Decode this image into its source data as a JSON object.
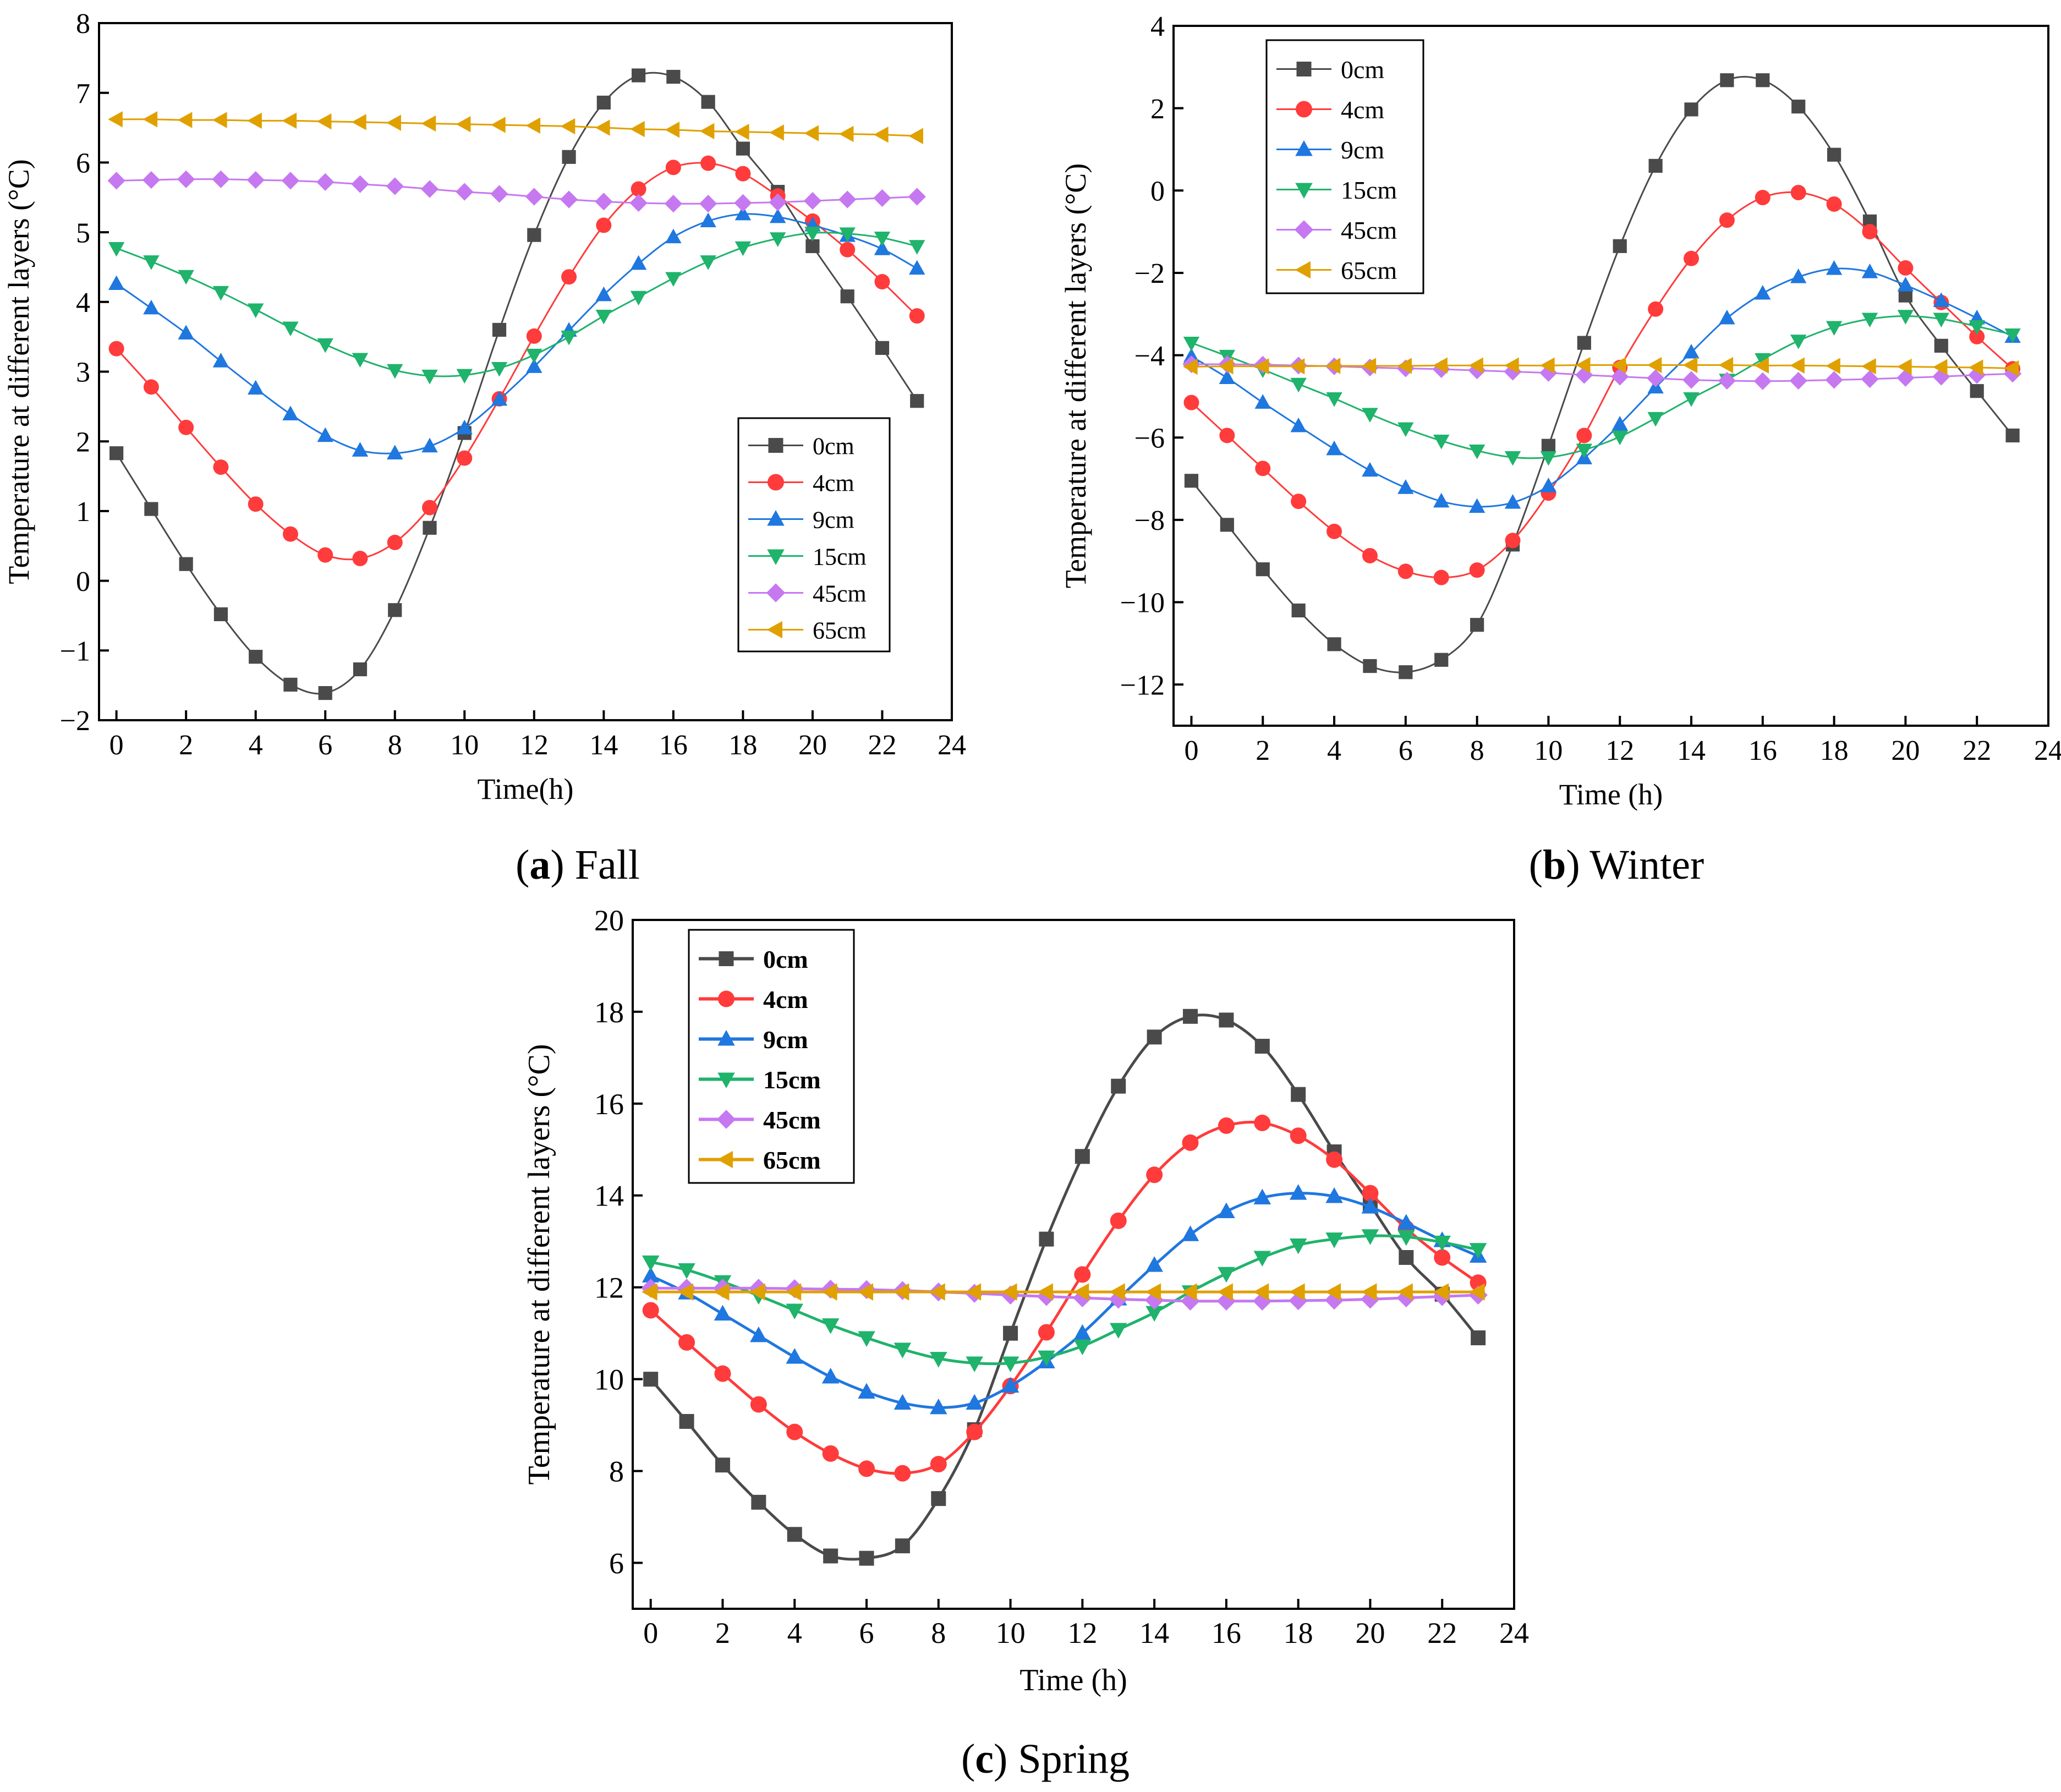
{
  "figure": {
    "captions": [
      {
        "letter": "a",
        "rest": " Fall"
      },
      {
        "letter": "b",
        "rest": " Winter"
      },
      {
        "letter": "c",
        "rest": " Spring"
      }
    ]
  },
  "chart_data": [
    {
      "type": "line",
      "title": "Fall",
      "xlabel": "Time(h)",
      "ylabel": "Temperature at different layers (°C)",
      "xlim": [
        -0.5,
        24
      ],
      "ylim": [
        -2,
        8
      ],
      "xticks": [
        0,
        2,
        4,
        6,
        8,
        10,
        12,
        14,
        16,
        18,
        20,
        22,
        24
      ],
      "yticks": [
        -2,
        -1,
        0,
        1,
        2,
        3,
        4,
        5,
        6,
        7,
        8
      ],
      "legend_position": "lower-right",
      "x": [
        0,
        1,
        2,
        3,
        4,
        5,
        6,
        7,
        8,
        9,
        10,
        11,
        12,
        13,
        14,
        15,
        16,
        17,
        18,
        19,
        20,
        21,
        22,
        23
      ],
      "series": [
        {
          "name": "0cm",
          "color": "#4a4a4a",
          "marker": "square",
          "values": [
            1.83,
            1.03,
            0.24,
            -0.48,
            -1.09,
            -1.49,
            -1.61,
            -1.27,
            -0.42,
            0.76,
            2.12,
            3.6,
            4.96,
            6.08,
            6.86,
            7.25,
            7.23,
            6.87,
            6.2,
            5.58,
            4.8,
            4.08,
            3.34,
            2.58
          ]
        },
        {
          "name": "4cm",
          "color": "#ff3b3b",
          "marker": "circle",
          "values": [
            3.33,
            2.78,
            2.2,
            1.63,
            1.1,
            0.67,
            0.37,
            0.32,
            0.55,
            1.05,
            1.76,
            2.61,
            3.51,
            4.36,
            5.1,
            5.62,
            5.93,
            5.99,
            5.84,
            5.52,
            5.16,
            4.75,
            4.29,
            3.8
          ]
        },
        {
          "name": "9cm",
          "color": "#1f77e0",
          "marker": "triangle-up",
          "values": [
            4.26,
            3.91,
            3.55,
            3.15,
            2.76,
            2.39,
            2.08,
            1.87,
            1.83,
            1.93,
            2.19,
            2.6,
            3.07,
            3.59,
            4.1,
            4.55,
            4.93,
            5.16,
            5.26,
            5.22,
            5.1,
            4.95,
            4.76,
            4.48
          ]
        },
        {
          "name": "15cm",
          "color": "#1fb36b",
          "marker": "triangle-down",
          "values": [
            4.77,
            4.58,
            4.37,
            4.14,
            3.89,
            3.63,
            3.39,
            3.18,
            3.02,
            2.94,
            2.95,
            3.05,
            3.24,
            3.5,
            3.8,
            4.07,
            4.34,
            4.58,
            4.78,
            4.91,
            4.99,
            4.98,
            4.92,
            4.8
          ]
        },
        {
          "name": "45cm",
          "color": "#c678f0",
          "marker": "diamond",
          "values": [
            5.74,
            5.75,
            5.76,
            5.76,
            5.75,
            5.74,
            5.72,
            5.69,
            5.66,
            5.62,
            5.58,
            5.55,
            5.51,
            5.47,
            5.44,
            5.42,
            5.41,
            5.41,
            5.42,
            5.43,
            5.45,
            5.47,
            5.49,
            5.51
          ]
        },
        {
          "name": "65cm",
          "color": "#e0a000",
          "marker": "triangle-left",
          "values": [
            6.62,
            6.62,
            6.61,
            6.61,
            6.6,
            6.6,
            6.59,
            6.58,
            6.57,
            6.56,
            6.55,
            6.54,
            6.53,
            6.52,
            6.5,
            6.48,
            6.47,
            6.45,
            6.44,
            6.43,
            6.42,
            6.41,
            6.4,
            6.38
          ]
        }
      ]
    },
    {
      "type": "line",
      "title": "Winter",
      "xlabel": "Time (h)",
      "ylabel": "Temperature at different layers (°C)",
      "xlim": [
        -0.5,
        24
      ],
      "ylim": [
        -13,
        4
      ],
      "xticks": [
        0,
        2,
        4,
        6,
        8,
        10,
        12,
        14,
        16,
        18,
        20,
        22,
        24
      ],
      "yticks": [
        -12,
        -10,
        -8,
        -6,
        -4,
        -2,
        0,
        2,
        4
      ],
      "legend_position": "top-left",
      "x": [
        0,
        1,
        2,
        3,
        4,
        5,
        6,
        7,
        8,
        9,
        10,
        11,
        12,
        13,
        14,
        15,
        16,
        17,
        18,
        19,
        20,
        21,
        22,
        23
      ],
      "series": [
        {
          "name": "0cm",
          "color": "#4a4a4a",
          "marker": "square",
          "values": [
            -7.05,
            -8.12,
            -9.2,
            -10.2,
            -11.02,
            -11.55,
            -11.7,
            -11.4,
            -10.55,
            -8.6,
            -6.2,
            -3.7,
            -1.35,
            0.6,
            1.97,
            2.68,
            2.68,
            2.04,
            0.87,
            -0.75,
            -2.55,
            -3.77,
            -4.87,
            -5.95
          ]
        },
        {
          "name": "4cm",
          "color": "#ff3b3b",
          "marker": "circle",
          "values": [
            -5.15,
            -5.95,
            -6.75,
            -7.55,
            -8.28,
            -8.87,
            -9.25,
            -9.4,
            -9.22,
            -8.5,
            -7.35,
            -5.95,
            -4.3,
            -2.88,
            -1.65,
            -0.72,
            -0.17,
            -0.05,
            -0.33,
            -1.0,
            -1.88,
            -2.72,
            -3.55,
            -4.33
          ]
        },
        {
          "name": "9cm",
          "color": "#1f77e0",
          "marker": "triangle-up",
          "values": [
            -4.03,
            -4.55,
            -5.15,
            -5.72,
            -6.28,
            -6.8,
            -7.22,
            -7.55,
            -7.68,
            -7.58,
            -7.18,
            -6.5,
            -5.68,
            -4.78,
            -3.93,
            -3.1,
            -2.5,
            -2.1,
            -1.9,
            -1.98,
            -2.3,
            -2.68,
            -3.1,
            -3.55
          ]
        },
        {
          "name": "15cm",
          "color": "#1fb36b",
          "marker": "triangle-down",
          "values": [
            -3.7,
            -4.02,
            -4.35,
            -4.7,
            -5.05,
            -5.43,
            -5.78,
            -6.08,
            -6.32,
            -6.48,
            -6.48,
            -6.3,
            -5.98,
            -5.53,
            -5.05,
            -4.6,
            -4.1,
            -3.65,
            -3.32,
            -3.12,
            -3.05,
            -3.12,
            -3.3,
            -3.5
          ]
        },
        {
          "name": "45cm",
          "color": "#c678f0",
          "marker": "diamond",
          "values": [
            -4.22,
            -4.22,
            -4.23,
            -4.25,
            -4.27,
            -4.3,
            -4.32,
            -4.34,
            -4.37,
            -4.4,
            -4.43,
            -4.48,
            -4.52,
            -4.56,
            -4.6,
            -4.62,
            -4.63,
            -4.62,
            -4.6,
            -4.58,
            -4.55,
            -4.52,
            -4.48,
            -4.45
          ]
        },
        {
          "name": "65cm",
          "color": "#e0a000",
          "marker": "triangle-left",
          "values": [
            -4.28,
            -4.27,
            -4.27,
            -4.27,
            -4.26,
            -4.26,
            -4.26,
            -4.25,
            -4.25,
            -4.25,
            -4.25,
            -4.24,
            -4.24,
            -4.24,
            -4.24,
            -4.24,
            -4.25,
            -4.25,
            -4.26,
            -4.27,
            -4.28,
            -4.29,
            -4.3,
            -4.32
          ]
        }
      ]
    },
    {
      "type": "line",
      "title": "Spring",
      "xlabel": "Time (h)",
      "ylabel": "Temperature at different layers (°C)",
      "xlim": [
        -0.5,
        24
      ],
      "ylim": [
        5,
        20
      ],
      "xticks": [
        0,
        2,
        4,
        6,
        8,
        10,
        12,
        14,
        16,
        18,
        20,
        22,
        24
      ],
      "yticks": [
        6,
        8,
        10,
        12,
        14,
        16,
        18,
        20
      ],
      "legend_position": "top-left",
      "x": [
        0,
        1,
        2,
        3,
        4,
        5,
        6,
        7,
        8,
        9,
        10,
        11,
        12,
        13,
        14,
        15,
        16,
        17,
        18,
        19,
        20,
        21,
        22,
        23
      ],
      "series": [
        {
          "name": "0cm",
          "color": "#4a4a4a",
          "marker": "square",
          "values": [
            10.0,
            9.08,
            8.13,
            7.32,
            6.62,
            6.15,
            6.1,
            6.37,
            7.4,
            8.9,
            11.0,
            13.05,
            14.85,
            16.38,
            17.45,
            17.9,
            17.82,
            17.25,
            16.2,
            14.95,
            13.8,
            12.65,
            11.85,
            10.9
          ]
        },
        {
          "name": "4cm",
          "color": "#ff3b3b",
          "marker": "circle",
          "values": [
            11.5,
            10.8,
            10.12,
            9.45,
            8.85,
            8.38,
            8.05,
            7.95,
            8.15,
            8.85,
            9.85,
            11.02,
            12.28,
            13.45,
            14.45,
            15.15,
            15.52,
            15.58,
            15.3,
            14.78,
            14.05,
            13.28,
            12.65,
            12.1
          ]
        },
        {
          "name": "9cm",
          "color": "#1f77e0",
          "marker": "triangle-up",
          "values": [
            12.25,
            11.88,
            11.42,
            10.95,
            10.48,
            10.05,
            9.72,
            9.48,
            9.38,
            9.48,
            9.85,
            10.38,
            11.0,
            11.75,
            12.48,
            13.15,
            13.65,
            13.95,
            14.05,
            13.98,
            13.75,
            13.4,
            13.02,
            12.68
          ]
        },
        {
          "name": "15cm",
          "color": "#1fb36b",
          "marker": "triangle-down",
          "values": [
            12.55,
            12.38,
            12.12,
            11.82,
            11.5,
            11.18,
            10.9,
            10.65,
            10.45,
            10.35,
            10.35,
            10.48,
            10.72,
            11.08,
            11.45,
            11.9,
            12.3,
            12.65,
            12.92,
            13.05,
            13.12,
            13.1,
            12.98,
            12.82
          ]
        },
        {
          "name": "45cm",
          "color": "#c678f0",
          "marker": "diamond",
          "values": [
            11.98,
            11.98,
            11.98,
            11.98,
            11.97,
            11.96,
            11.95,
            11.93,
            11.9,
            11.87,
            11.83,
            11.8,
            11.77,
            11.74,
            11.72,
            11.7,
            11.7,
            11.7,
            11.71,
            11.72,
            11.74,
            11.77,
            11.8,
            11.83
          ]
        },
        {
          "name": "65cm",
          "color": "#e0a000",
          "marker": "triangle-left",
          "values": [
            11.9,
            11.9,
            11.9,
            11.9,
            11.9,
            11.9,
            11.9,
            11.9,
            11.9,
            11.9,
            11.9,
            11.9,
            11.9,
            11.9,
            11.9,
            11.9,
            11.9,
            11.9,
            11.9,
            11.9,
            11.9,
            11.9,
            11.9,
            11.9
          ]
        }
      ]
    }
  ]
}
